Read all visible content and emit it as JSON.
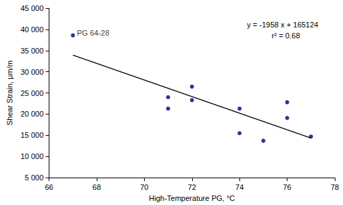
{
  "chart_data": {
    "type": "scatter",
    "x_label": "High-Temperature PG, °C",
    "y_label": "Shear Strain, µm/m",
    "series": [
      {
        "type": "scatter",
        "color": "#00007f",
        "marker": "circle",
        "x": [
          67,
          71,
          71,
          72,
          72,
          74,
          74,
          75,
          76,
          76,
          77
        ],
        "values": [
          38600,
          24000,
          21300,
          26500,
          23300,
          21300,
          15500,
          13700,
          22800,
          19100,
          14700
        ],
        "point_labels": [
          "PG 64-28",
          null,
          null,
          null,
          null,
          null,
          null,
          null,
          null,
          null,
          null
        ]
      },
      {
        "type": "line",
        "color": "#000000",
        "line_style": "solid",
        "x": [
          67,
          77
        ],
        "values": [
          33938,
          14358
        ]
      }
    ],
    "annotations": [
      "y = -1958 x + 165124",
      "r² = 0.68"
    ],
    "xlim": [
      66,
      78
    ],
    "xticks": [
      66,
      68,
      70,
      72,
      74,
      76,
      78
    ],
    "ylim": [
      5000,
      45000
    ],
    "yticks": [
      {
        "value": 5000,
        "label": "5 000"
      },
      {
        "value": 10000,
        "label": "10 000"
      },
      {
        "value": 15000,
        "label": "15 000"
      },
      {
        "value": 20000,
        "label": "20 000"
      },
      {
        "value": 25000,
        "label": "25 000"
      },
      {
        "value": 30000,
        "label": "30 000"
      },
      {
        "value": 35000,
        "label": "35 000"
      },
      {
        "value": 40000,
        "label": "40 000"
      },
      {
        "value": 45000,
        "label": "45 000"
      }
    ],
    "grid": false
  }
}
